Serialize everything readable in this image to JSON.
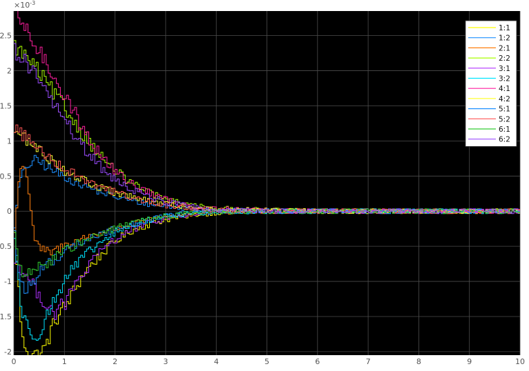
{
  "chart_data": {
    "type": "line",
    "title": "",
    "xlabel": "",
    "ylabel": "",
    "xlim": [
      0,
      10
    ],
    "ylim": [
      -2.05,
      2.85
    ],
    "y_exponent_label": "×10",
    "y_exponent_power": "-3",
    "grid": true,
    "legend_position": "top-right",
    "background": "#000000",
    "x_ticks": [
      "0",
      "1",
      "2",
      "3",
      "4",
      "5",
      "6",
      "7",
      "8",
      "9",
      "10"
    ],
    "y_ticks": [
      {
        "value": -2,
        "label": "-2"
      },
      {
        "value": -1.5,
        "label": "-1.5"
      },
      {
        "value": -1,
        "label": "-1"
      },
      {
        "value": -0.5,
        "label": "-0.5"
      },
      {
        "value": 0,
        "label": "0"
      },
      {
        "value": 0.5,
        "label": "0.5"
      },
      {
        "value": 1,
        "label": "1"
      },
      {
        "value": 1.5,
        "label": "1.5"
      },
      {
        "value": 2,
        "label": "2"
      },
      {
        "value": 2.5,
        "label": "2.5"
      }
    ],
    "series": [
      {
        "name": "1:1",
        "color": "#ffff00",
        "x": [
          0,
          0.15,
          0.3,
          0.45,
          0.6,
          0.8,
          1.0,
          1.2,
          1.4,
          1.6,
          1.8,
          2.0,
          2.3,
          2.6,
          3.0,
          3.5,
          4.0,
          5.0,
          6.0,
          7.0,
          8.0,
          9.0,
          10.0
        ],
        "y": [
          -0.3,
          -1.85,
          -2.0,
          -2.05,
          -1.95,
          -1.55,
          -1.35,
          -1.1,
          -0.85,
          -0.7,
          -0.55,
          -0.42,
          -0.28,
          -0.2,
          -0.12,
          -0.05,
          -0.02,
          0,
          0,
          0,
          0,
          0,
          0
        ]
      },
      {
        "name": "1:2",
        "color": "#1e90ff",
        "x": [
          0,
          0.1,
          0.25,
          0.4,
          0.55,
          0.7,
          0.9,
          1.1,
          1.3,
          1.6,
          2.0,
          2.5,
          3.0,
          3.5,
          4.0,
          5.0,
          6.0,
          7.0,
          8.0,
          9.0,
          10.0
        ],
        "y": [
          -0.2,
          0.45,
          0.65,
          0.72,
          0.68,
          0.6,
          0.52,
          0.45,
          0.38,
          0.3,
          0.2,
          0.12,
          0.07,
          0.03,
          0.01,
          0,
          0,
          0,
          0,
          0,
          0
        ]
      },
      {
        "name": "2:1",
        "color": "#ff7f0e",
        "x": [
          0,
          0.08,
          0.15,
          0.22,
          0.3,
          0.38,
          0.45,
          0.55,
          0.7,
          0.9,
          1.2,
          1.5,
          2.0,
          2.5,
          3.0,
          3.5,
          4.0,
          5.0,
          6.0,
          7.0,
          8.0,
          9.0,
          10.0
        ],
        "y": [
          -0.3,
          0.4,
          0.72,
          0.6,
          0.15,
          -0.35,
          -0.5,
          -0.55,
          -0.6,
          -0.52,
          -0.42,
          -0.35,
          -0.25,
          -0.15,
          -0.08,
          -0.04,
          -0.02,
          0,
          0,
          0,
          0,
          0,
          0
        ]
      },
      {
        "name": "2:2",
        "color": "#aaff00",
        "x": [
          0,
          0.3,
          0.6,
          1.0,
          1.4,
          1.8,
          2.2,
          2.6,
          3.0,
          3.5,
          4.0,
          5.0,
          6.0,
          7.0,
          8.0,
          9.0,
          10.0
        ],
        "y": [
          2.35,
          2.15,
          1.85,
          1.45,
          1.05,
          0.7,
          0.45,
          0.28,
          0.16,
          0.08,
          0.04,
          0.01,
          0,
          0,
          0,
          0,
          0
        ]
      },
      {
        "name": "3:1",
        "color": "#b030ff",
        "x": [
          0,
          0.3,
          0.6,
          0.8,
          1.0,
          1.2,
          1.5,
          1.8,
          2.2,
          2.6,
          3.0,
          3.5,
          4.0,
          5.0,
          6.0,
          7.0,
          8.0,
          9.0,
          10.0
        ],
        "y": [
          -0.7,
          -1.0,
          -1.3,
          -1.45,
          -1.3,
          -1.05,
          -0.75,
          -0.5,
          -0.3,
          -0.18,
          -0.1,
          -0.05,
          -0.02,
          0,
          0,
          0,
          0,
          0,
          0
        ]
      },
      {
        "name": "3:2",
        "color": "#00e5ff",
        "x": [
          0,
          0.15,
          0.3,
          0.45,
          0.6,
          0.8,
          1.0,
          1.3,
          1.6,
          2.0,
          2.5,
          3.0,
          3.5,
          4.0,
          5.0,
          6.0,
          7.0,
          8.0,
          9.0,
          10.0
        ],
        "y": [
          -0.4,
          -1.5,
          -1.72,
          -1.75,
          -1.55,
          -1.25,
          -0.95,
          -0.7,
          -0.5,
          -0.3,
          -0.15,
          -0.07,
          -0.03,
          -0.01,
          0,
          0,
          0,
          0,
          0,
          0
        ]
      },
      {
        "name": "4:1",
        "color": "#ff1f9f",
        "x": [
          0,
          0.2,
          0.5,
          0.8,
          1.1,
          1.4,
          1.7,
          2.0,
          2.4,
          2.8,
          3.2,
          3.6,
          4.0,
          5.0,
          6.0,
          7.0,
          8.0,
          9.0,
          10.0
        ],
        "y": [
          2.85,
          2.6,
          2.25,
          1.9,
          1.5,
          1.1,
          0.8,
          0.55,
          0.35,
          0.22,
          0.12,
          0.06,
          0.03,
          0.01,
          0,
          0,
          0,
          0,
          0
        ]
      },
      {
        "name": "4:2",
        "color": "#ffff33",
        "x": [
          0,
          0.3,
          0.6,
          1.0,
          1.4,
          1.8,
          2.2,
          2.6,
          3.0,
          3.5,
          4.0,
          5.0,
          6.0,
          7.0,
          8.0,
          9.0,
          10.0
        ],
        "y": [
          1.15,
          0.98,
          0.8,
          0.58,
          0.42,
          0.3,
          0.22,
          0.15,
          0.1,
          0.05,
          0.03,
          0.01,
          0,
          0,
          0,
          0,
          0
        ]
      },
      {
        "name": "5:1",
        "color": "#1e90ff",
        "x": [
          0,
          0.1,
          0.2,
          0.35,
          0.5,
          0.7,
          0.9,
          1.1,
          1.4,
          1.7,
          2.0,
          2.4,
          2.8,
          3.2,
          3.6,
          4.0,
          5.0,
          6.0,
          7.0,
          8.0,
          9.0,
          10.0
        ],
        "y": [
          -0.3,
          -1.0,
          -1.15,
          -1.0,
          -0.85,
          -0.72,
          -0.62,
          -0.52,
          -0.42,
          -0.33,
          -0.25,
          -0.17,
          -0.1,
          -0.05,
          -0.02,
          -0.01,
          0,
          0,
          0,
          0,
          0,
          0
        ]
      },
      {
        "name": "5:2",
        "color": "#ff5555",
        "x": [
          0,
          0.3,
          0.6,
          1.0,
          1.4,
          1.8,
          2.2,
          2.6,
          3.0,
          3.5,
          4.0,
          5.0,
          6.0,
          7.0,
          8.0,
          9.0,
          10.0
        ],
        "y": [
          1.2,
          1.0,
          0.82,
          0.6,
          0.45,
          0.32,
          0.22,
          0.14,
          0.08,
          0.04,
          0.02,
          0,
          0,
          0,
          0,
          0,
          0
        ]
      },
      {
        "name": "6:1",
        "color": "#33cc33",
        "x": [
          0,
          0.1,
          0.25,
          0.5,
          0.8,
          1.2,
          1.6,
          2.0,
          2.5,
          3.0,
          3.5,
          4.0,
          5.0,
          6.0,
          7.0,
          8.0,
          9.0,
          10.0
        ],
        "y": [
          -0.3,
          -0.85,
          -0.92,
          -0.8,
          -0.65,
          -0.48,
          -0.35,
          -0.24,
          -0.13,
          -0.07,
          -0.03,
          -0.01,
          0,
          0,
          0,
          0,
          0,
          0
        ]
      },
      {
        "name": "6:2",
        "color": "#9b4dff",
        "x": [
          0,
          0.3,
          0.6,
          0.9,
          1.2,
          1.5,
          1.8,
          2.2,
          2.6,
          3.0,
          3.5,
          4.0,
          5.0,
          6.0,
          7.0,
          8.0,
          9.0,
          10.0
        ],
        "y": [
          2.3,
          2.05,
          1.72,
          1.4,
          1.05,
          0.78,
          0.55,
          0.35,
          0.22,
          0.13,
          0.06,
          0.03,
          0,
          0,
          0,
          0,
          0,
          0
        ]
      }
    ]
  }
}
